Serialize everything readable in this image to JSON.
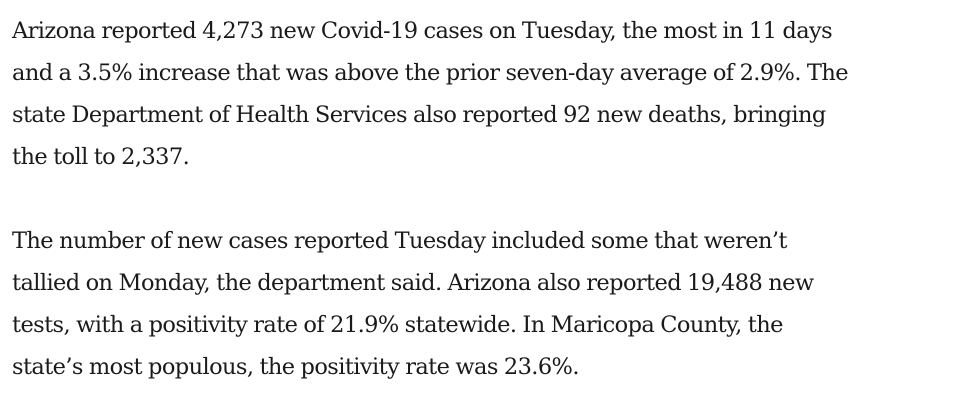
{
  "article": {
    "paragraphs": [
      {
        "lines": [
          "Arizona reported 4,273 new Covid-19 cases on Tuesday, the most in 11 days",
          "and a 3.5% increase that was above the prior seven-day average of 2.9%. The",
          "state Department of Health Services also reported 92 new deaths, bringing",
          "the toll to 2,337."
        ]
      },
      {
        "lines": [
          "The number of new cases reported Tuesday included some that weren’t",
          "tallied on Monday, the department said. Arizona also reported 19,488 new",
          "tests, with a positivity rate of 21.9% statewide. In Maricopa County, the",
          "state’s most populous, the positivity rate was 23.6%."
        ]
      }
    ]
  }
}
